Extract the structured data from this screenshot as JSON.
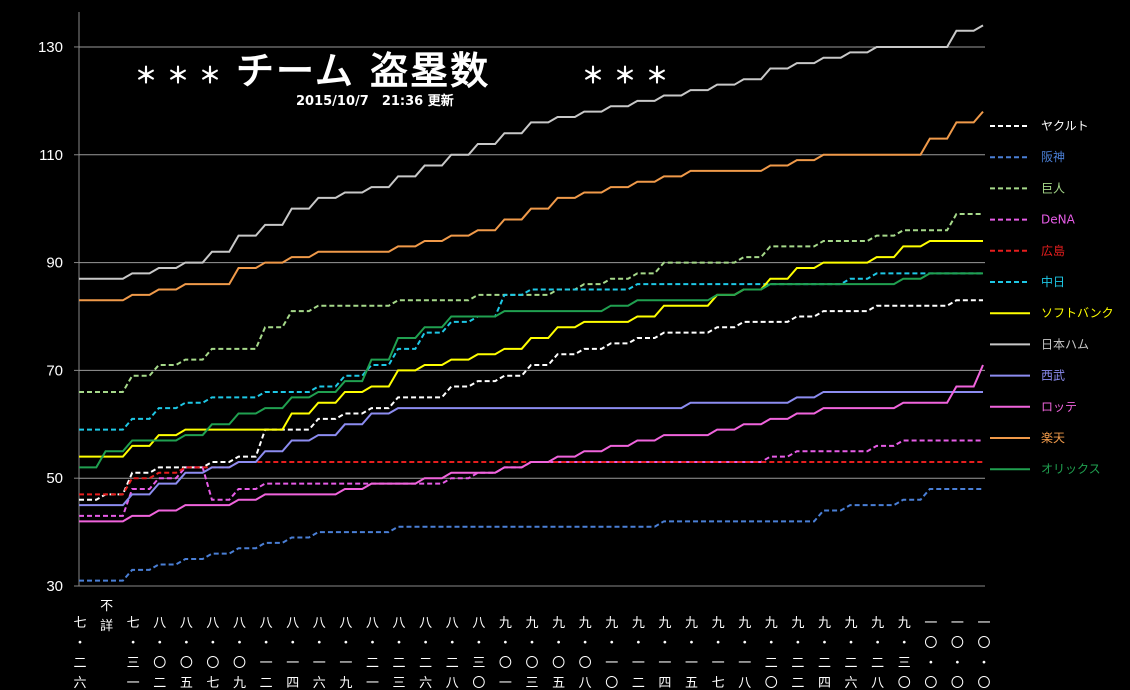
{
  "header": {
    "title": "チーム 盗塁数",
    "stars_left": "＊＊＊",
    "stars_right": "＊＊＊",
    "updated": "2015/10/7　21:36 更新"
  },
  "chart_data": {
    "type": "line",
    "title": "チーム 盗塁数",
    "subtitle": "2015/10/7　21:36 更新",
    "ylim": [
      30,
      135
    ],
    "yticks": [
      30,
      50,
      70,
      90,
      110,
      130
    ],
    "grid": true,
    "legend_position": "right",
    "categories": [
      "七・二六",
      "不詳",
      "七・三一",
      "八・〇二",
      "八・〇五",
      "八・〇七",
      "八・〇九",
      "八・一二",
      "八・一四",
      "八・一六",
      "八・一九",
      "八・二一",
      "八・二三",
      "八・二六",
      "八・二八",
      "八・三〇",
      "九・〇一",
      "九・〇三",
      "九・〇五",
      "九・〇八",
      "九・一〇",
      "九・一二",
      "九・一四",
      "九・一五",
      "九・一七",
      "九・一八",
      "九・二〇",
      "九・二二",
      "九・二四",
      "九・二六",
      "九・二八",
      "九・三〇",
      "一〇・〇二",
      "一〇・〇四",
      "一〇・〇六"
    ],
    "series": [
      {
        "name": "ヤクルト",
        "color": "#ffffff",
        "dash": true,
        "values": [
          46,
          47,
          51,
          52,
          52,
          53,
          54,
          59,
          59,
          61,
          62,
          63,
          65,
          65,
          67,
          68,
          69,
          71,
          73,
          74,
          75,
          76,
          77,
          77,
          78,
          79,
          79,
          80,
          81,
          81,
          82,
          82,
          82,
          83,
          83
        ]
      },
      {
        "name": "阪神",
        "color": "#4a7fd6",
        "dash": true,
        "values": [
          31,
          31,
          33,
          34,
          35,
          36,
          37,
          38,
          39,
          40,
          40,
          40,
          41,
          41,
          41,
          41,
          41,
          41,
          41,
          41,
          41,
          41,
          42,
          42,
          42,
          42,
          42,
          42,
          44,
          45,
          45,
          46,
          48,
          48,
          48
        ]
      },
      {
        "name": "巨人",
        "color": "#a6d98a",
        "dash": true,
        "values": [
          66,
          66,
          69,
          71,
          72,
          74,
          74,
          78,
          81,
          82,
          82,
          82,
          83,
          83,
          83,
          84,
          84,
          84,
          85,
          86,
          87,
          88,
          90,
          90,
          90,
          91,
          93,
          93,
          94,
          94,
          95,
          96,
          96,
          99,
          99
        ]
      },
      {
        "name": "DeNA",
        "color": "#e65ce6",
        "dash": true,
        "values": [
          43,
          43,
          48,
          50,
          52,
          46,
          48,
          49,
          49,
          49,
          49,
          49,
          49,
          49,
          50,
          51,
          52,
          53,
          53,
          53,
          53,
          53,
          53,
          53,
          53,
          53,
          54,
          55,
          55,
          55,
          56,
          57,
          57,
          57,
          57
        ]
      },
      {
        "name": "広島",
        "color": "#e61e1e",
        "dash": true,
        "values": [
          47,
          47,
          50,
          51,
          52,
          52,
          53,
          53,
          53,
          53,
          53,
          53,
          53,
          53,
          53,
          53,
          53,
          53,
          53,
          53,
          53,
          53,
          53,
          53,
          53,
          53,
          53,
          53,
          53,
          53,
          53,
          53,
          53,
          53,
          53
        ]
      },
      {
        "name": "中日",
        "color": "#1ec8e6",
        "dash": true,
        "values": [
          59,
          59,
          61,
          63,
          64,
          65,
          65,
          66,
          66,
          67,
          69,
          71,
          74,
          77,
          79,
          80,
          84,
          85,
          85,
          85,
          85,
          86,
          86,
          86,
          86,
          86,
          86,
          86,
          86,
          87,
          88,
          88,
          88,
          88,
          88
        ]
      },
      {
        "name": "ソフトバンク",
        "color": "#ffff00",
        "dash": false,
        "values": [
          54,
          54,
          56,
          58,
          59,
          59,
          59,
          59,
          62,
          64,
          66,
          67,
          70,
          71,
          72,
          73,
          74,
          76,
          78,
          79,
          79,
          80,
          82,
          82,
          84,
          85,
          87,
          89,
          90,
          90,
          91,
          93,
          94,
          94,
          94
        ]
      },
      {
        "name": "日本ハム",
        "color": "#c8c8c8",
        "dash": false,
        "values": [
          87,
          87,
          88,
          89,
          90,
          92,
          95,
          97,
          100,
          102,
          103,
          104,
          106,
          108,
          110,
          112,
          114,
          116,
          117,
          118,
          119,
          120,
          121,
          122,
          123,
          124,
          126,
          127,
          128,
          129,
          130,
          130,
          130,
          133,
          134
        ]
      },
      {
        "name": "西武",
        "color": "#8c8cf0",
        "dash": false,
        "values": [
          45,
          45,
          47,
          49,
          51,
          52,
          53,
          55,
          57,
          58,
          60,
          62,
          63,
          63,
          63,
          63,
          63,
          63,
          63,
          63,
          63,
          63,
          63,
          64,
          64,
          64,
          64,
          65,
          66,
          66,
          66,
          66,
          66,
          66,
          66
        ]
      },
      {
        "name": "ロッテ",
        "color": "#f064dc",
        "dash": false,
        "values": [
          42,
          42,
          43,
          44,
          45,
          45,
          46,
          47,
          47,
          47,
          48,
          49,
          49,
          50,
          51,
          51,
          52,
          53,
          54,
          55,
          56,
          57,
          58,
          58,
          59,
          60,
          61,
          62,
          63,
          63,
          63,
          64,
          64,
          67,
          71
        ]
      },
      {
        "name": "楽天",
        "color": "#f09a4a",
        "dash": false,
        "values": [
          83,
          83,
          84,
          85,
          86,
          86,
          89,
          90,
          91,
          92,
          92,
          92,
          93,
          94,
          95,
          96,
          98,
          100,
          102,
          103,
          104,
          105,
          106,
          107,
          107,
          107,
          108,
          109,
          110,
          110,
          110,
          110,
          113,
          116,
          118
        ]
      },
      {
        "name": "オリックス",
        "color": "#20a050",
        "dash": false,
        "values": [
          52,
          55,
          57,
          57,
          58,
          60,
          62,
          63,
          65,
          66,
          68,
          72,
          76,
          78,
          80,
          80,
          81,
          81,
          81,
          81,
          82,
          83,
          83,
          83,
          84,
          85,
          86,
          86,
          86,
          86,
          86,
          87,
          88,
          88,
          88
        ]
      }
    ]
  }
}
